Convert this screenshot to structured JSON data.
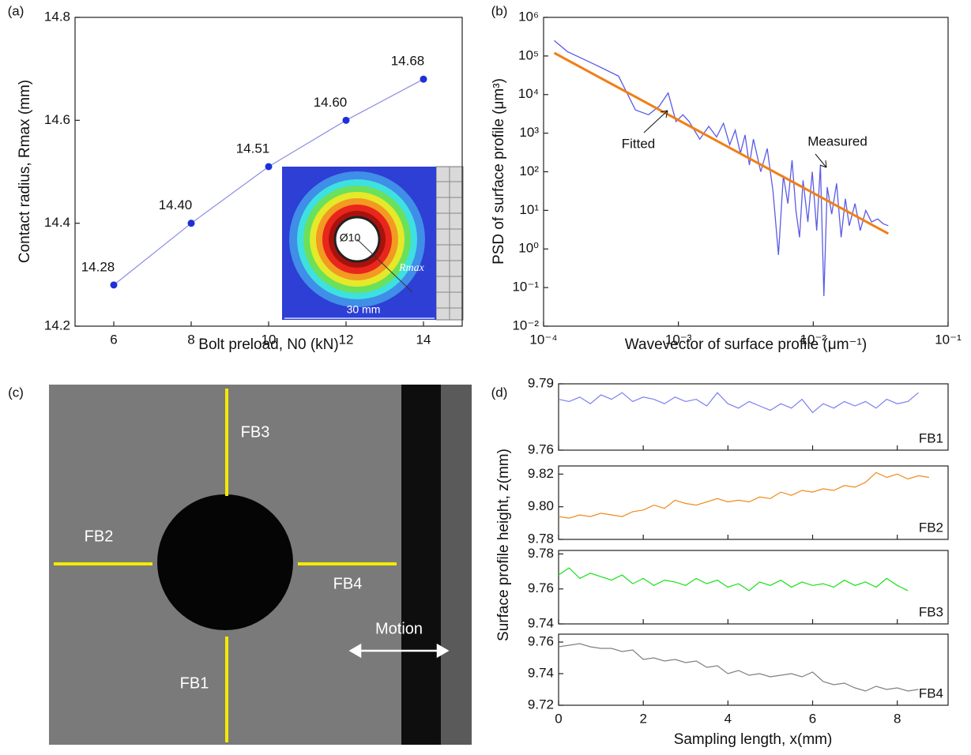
{
  "chart_data": [
    {
      "type": "line",
      "panel": "(a)",
      "xlabel": "Bolt preload, N0 (kN)",
      "ylabel": "Contact radius, Rmax (mm)",
      "x": [
        6,
        8,
        10,
        12,
        14
      ],
      "series": [
        {
          "color": "#8a8ee0",
          "marker_color": "#1f2fd6",
          "values": [
            14.28,
            14.4,
            14.51,
            14.6,
            14.68
          ],
          "value_labels": [
            "14.28",
            "14.40",
            "14.51",
            "14.60",
            "14.68"
          ]
        }
      ],
      "xlim": [
        5,
        15
      ],
      "xticks": [
        6,
        8,
        10,
        12,
        14
      ],
      "ylim": [
        14.2,
        14.8
      ],
      "yticks": [
        14.2,
        14.4,
        14.6,
        14.8
      ],
      "annotations": [
        "Ø10",
        "Rmax",
        "30 mm"
      ]
    },
    {
      "type": "line",
      "panel": "(b)",
      "xlog": true,
      "ylog": true,
      "xlabel": "Wavevector of surface profile (μm⁻¹)",
      "ylabel": "PSD of surface profile (μm³)",
      "series": [
        {
          "name": "Measured",
          "color": "#5b5be6",
          "width": 1.3,
          "x": [
            0.00012,
            0.00015,
            0.00024,
            0.00036,
            0.00048,
            0.0006,
            0.00072,
            0.00084,
            0.00096,
            0.00108,
            0.0012,
            0.00144,
            0.00168,
            0.00192,
            0.00216,
            0.0024,
            0.00264,
            0.00288,
            0.00312,
            0.00336,
            0.0036,
            0.00408,
            0.00456,
            0.00504,
            0.00552,
            0.006,
            0.00648,
            0.00696,
            0.00744,
            0.00792,
            0.0084,
            0.00912,
            0.00984,
            0.0106,
            0.0113,
            0.012,
            0.0127,
            0.0137,
            0.0149,
            0.0161,
            0.0173,
            0.0185,
            0.0204,
            0.0223,
            0.0245,
            0.0271,
            0.03,
            0.033,
            0.036
          ],
          "values": [
            250000,
            130000,
            60000,
            30000,
            4000,
            3000,
            5000,
            11000,
            2000,
            3000,
            2000,
            700,
            1500,
            800,
            1800,
            500,
            1200,
            300,
            900,
            150,
            700,
            100,
            400,
            30,
            0.7,
            80,
            15,
            200,
            10,
            2,
            60,
            5,
            100,
            3,
            150,
            0.06,
            40,
            8,
            50,
            2,
            20,
            4,
            15,
            3,
            10,
            5,
            6,
            4.5,
            4
          ]
        },
        {
          "name": "Fitted",
          "color": "#f07f16",
          "width": 3,
          "x": [
            0.00012,
            0.036
          ],
          "values": [
            120000,
            2.5
          ]
        }
      ],
      "xlim": [
        0.0001,
        0.1
      ],
      "xticks": [
        {
          "value": 0.0001,
          "label": "10⁻⁴"
        },
        {
          "value": 0.001,
          "label": "10⁻³"
        },
        {
          "value": 0.01,
          "label": "10⁻²"
        },
        {
          "value": 0.1,
          "label": "10⁻¹"
        }
      ],
      "ylim": [
        0.01,
        1000000
      ],
      "yticks": [
        {
          "value": 0.01,
          "label": "10⁻²"
        },
        {
          "value": 0.1,
          "label": "10⁻¹"
        },
        {
          "value": 1,
          "label": "10⁰"
        },
        {
          "value": 10,
          "label": "10¹"
        },
        {
          "value": 100,
          "label": "10²"
        },
        {
          "value": 1000,
          "label": "10³"
        },
        {
          "value": 10000,
          "label": "10⁴"
        },
        {
          "value": 100000,
          "label": "10⁵"
        },
        {
          "value": 1000000,
          "label": "10⁶"
        }
      ]
    },
    {
      "type": "photo",
      "panel": "(c)",
      "labels": [
        "FB3",
        "FB2",
        "FB4",
        "FB1",
        "Motion"
      ]
    },
    {
      "type": "line",
      "panel": "(d)",
      "xlabel": "Sampling length, x(mm)",
      "ylabel": "Surface profile height, z(mm)",
      "x": [
        0,
        0.25,
        0.5,
        0.75,
        1,
        1.25,
        1.5,
        1.75,
        2,
        2.25,
        2.5,
        2.75,
        3,
        3.25,
        3.5,
        3.75,
        4,
        4.25,
        4.5,
        4.75,
        5,
        5.25,
        5.5,
        5.75,
        6,
        6.25,
        6.5,
        6.75,
        7,
        7.25,
        7.5,
        7.75,
        8,
        8.25,
        8.5,
        8.75
      ],
      "xlim": [
        0,
        9.2
      ],
      "xticks": [
        0,
        2,
        4,
        6,
        8
      ],
      "subplots": [
        {
          "ylim": [
            9.76,
            9.79
          ],
          "yticks": [
            9.76,
            9.79
          ],
          "series": [
            {
              "name": "FB1",
              "color": "#7b7ff0",
              "values": [
                9.783,
                9.782,
                9.784,
                9.781,
                9.785,
                9.783,
                9.786,
                9.782,
                9.784,
                9.783,
                9.781,
                9.784,
                9.782,
                9.783,
                9.78,
                9.786,
                9.781,
                9.779,
                9.782,
                9.78,
                9.778,
                9.781,
                9.779,
                9.783,
                9.777,
                9.781,
                9.779,
                9.782,
                9.78,
                9.782,
                9.779,
                9.783,
                9.781,
                9.782,
                9.786,
                null
              ]
            }
          ]
        },
        {
          "ylim": [
            9.78,
            9.825
          ],
          "yticks": [
            9.78,
            {
              "value": 9.8,
              "label": "9.80"
            },
            9.82
          ],
          "series": [
            {
              "name": "FB2",
              "color": "#f08a1c",
              "values": [
                9.794,
                9.793,
                9.795,
                9.794,
                9.796,
                9.795,
                9.794,
                9.797,
                9.798,
                9.801,
                9.799,
                9.804,
                9.802,
                9.801,
                9.803,
                9.805,
                9.803,
                9.804,
                9.803,
                9.806,
                9.805,
                9.809,
                9.807,
                9.81,
                9.809,
                9.811,
                9.81,
                9.813,
                9.812,
                9.815,
                9.821,
                9.818,
                9.82,
                9.817,
                9.819,
                9.818
              ]
            }
          ]
        },
        {
          "ylim": [
            9.74,
            9.782
          ],
          "yticks": [
            9.74,
            9.76,
            9.78
          ],
          "series": [
            {
              "name": "FB3",
              "color": "#19e019",
              "values": [
                9.768,
                9.772,
                9.766,
                9.769,
                9.767,
                9.765,
                9.768,
                9.763,
                9.766,
                9.762,
                9.765,
                9.764,
                9.762,
                9.766,
                9.763,
                9.765,
                9.761,
                9.763,
                9.759,
                9.764,
                9.762,
                9.765,
                9.761,
                9.764,
                9.762,
                9.763,
                9.761,
                9.765,
                9.762,
                9.764,
                9.761,
                9.766,
                9.762,
                9.759,
                null,
                null
              ]
            }
          ]
        },
        {
          "ylim": [
            9.72,
            9.765
          ],
          "yticks": [
            9.72,
            9.74,
            9.76
          ],
          "series": [
            {
              "name": "FB4",
              "color": "#808080",
              "values": [
                9.757,
                9.758,
                9.759,
                9.757,
                9.756,
                9.756,
                9.754,
                9.755,
                9.749,
                9.75,
                9.748,
                9.749,
                9.747,
                9.748,
                9.744,
                9.745,
                9.74,
                9.742,
                9.739,
                9.74,
                9.738,
                9.739,
                9.74,
                9.738,
                9.741,
                9.735,
                9.733,
                9.734,
                9.731,
                9.729,
                9.732,
                9.73,
                9.731,
                9.729,
                9.73,
                null
              ]
            }
          ]
        }
      ]
    }
  ]
}
